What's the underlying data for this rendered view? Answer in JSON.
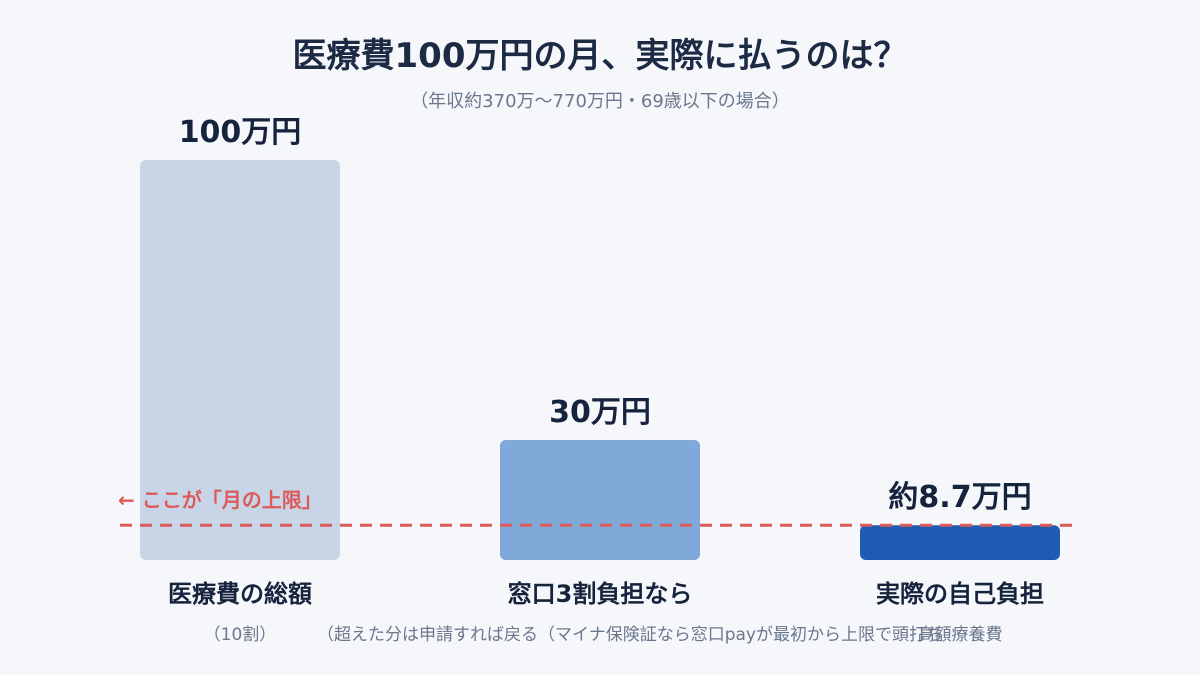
{
  "chart_data": {
    "type": "bar",
    "title": "医療費100万円の月、実際に払うのは？",
    "subtitle": "（年収約370万〜770万円・69歳以下の場合）",
    "categories": [
      "医療費の総額",
      "窓口3割負担なら",
      "実際の自己負担"
    ],
    "values": [
      100,
      30,
      8.7
    ],
    "value_labels": [
      "100万円",
      "30万円",
      "約8.7万円"
    ],
    "notes": [
      "（10割）",
      "（超えた分は申請すれば戻る（マイナ保険証なら窓口payが最初から上限で頭打ち",
      "高額療養費"
    ],
    "colors": [
      "#c8d5e6",
      "#80a8d9",
      "#1e5cb3"
    ],
    "limit_line": {
      "value": 8.7,
      "label": "← ここが「月の上限」",
      "color": "#dc5a5a"
    },
    "ylim": [
      0,
      100
    ],
    "grid": false,
    "xlabel": "",
    "ylabel": ""
  }
}
